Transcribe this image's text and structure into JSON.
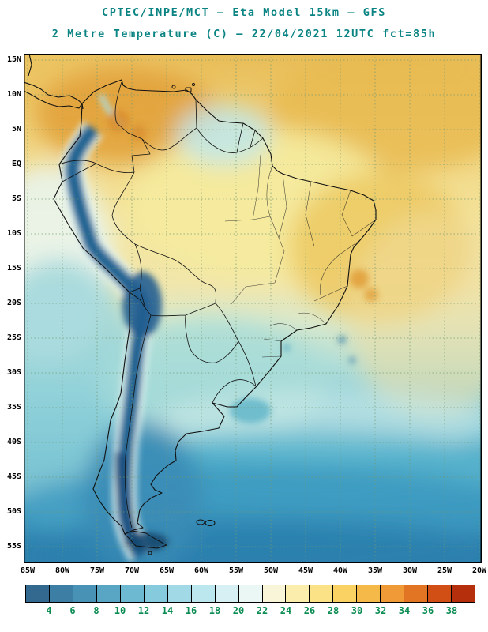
{
  "titles": {
    "line1": "CPTEC/INPE/MCT —  Eta Model 15km — GFS",
    "line2": "2 Metre Temperature (C) — 22/04/2021 12UTC fct=85h"
  },
  "map": {
    "lat_labels": [
      "15N",
      "10N",
      "5N",
      "EQ",
      "5S",
      "10S",
      "15S",
      "20S",
      "25S",
      "30S",
      "35S",
      "40S",
      "45S",
      "50S",
      "55S"
    ],
    "lon_labels": [
      "85W",
      "80W",
      "75W",
      "70W",
      "65W",
      "60W",
      "55W",
      "50W",
      "45W",
      "40W",
      "35W",
      "30W",
      "25W",
      "20W"
    ]
  },
  "colorbar": {
    "labels": [
      "4",
      "6",
      "8",
      "10",
      "12",
      "14",
      "16",
      "18",
      "20",
      "22",
      "24",
      "26",
      "28",
      "30",
      "32",
      "34",
      "36",
      "38"
    ],
    "colors": [
      "#33688f",
      "#3d7ea4",
      "#4892b6",
      "#58a6c4",
      "#6db9d2",
      "#86cadd",
      "#a1d9e7",
      "#bce7ee",
      "#d6f0f3",
      "#ebf7f5",
      "#f9f5d8",
      "#fbeead",
      "#fbe287",
      "#f9d263",
      "#f5b94a",
      "#ef9a37",
      "#e27524",
      "#d14f15",
      "#b52f0c"
    ]
  },
  "chart_data": {
    "type": "heatmap",
    "title": "2 Metre Temperature (C)",
    "model": "Eta Model 15km — GFS",
    "valid": "22/04/2021 12UTC fct=85h",
    "x_ticks": [
      "85W",
      "80W",
      "75W",
      "70W",
      "65W",
      "60W",
      "55W",
      "50W",
      "45W",
      "40W",
      "35W",
      "30W",
      "25W",
      "20W"
    ],
    "y_ticks": [
      "15N",
      "10N",
      "5N",
      "EQ",
      "5S",
      "10S",
      "15S",
      "20S",
      "25S",
      "30S",
      "35S",
      "40S",
      "45S",
      "50S",
      "55S"
    ],
    "scale_values_c": [
      4,
      6,
      8,
      10,
      12,
      14,
      16,
      18,
      20,
      22,
      24,
      26,
      28,
      30,
      32,
      34,
      36,
      38
    ],
    "units": "C"
  }
}
